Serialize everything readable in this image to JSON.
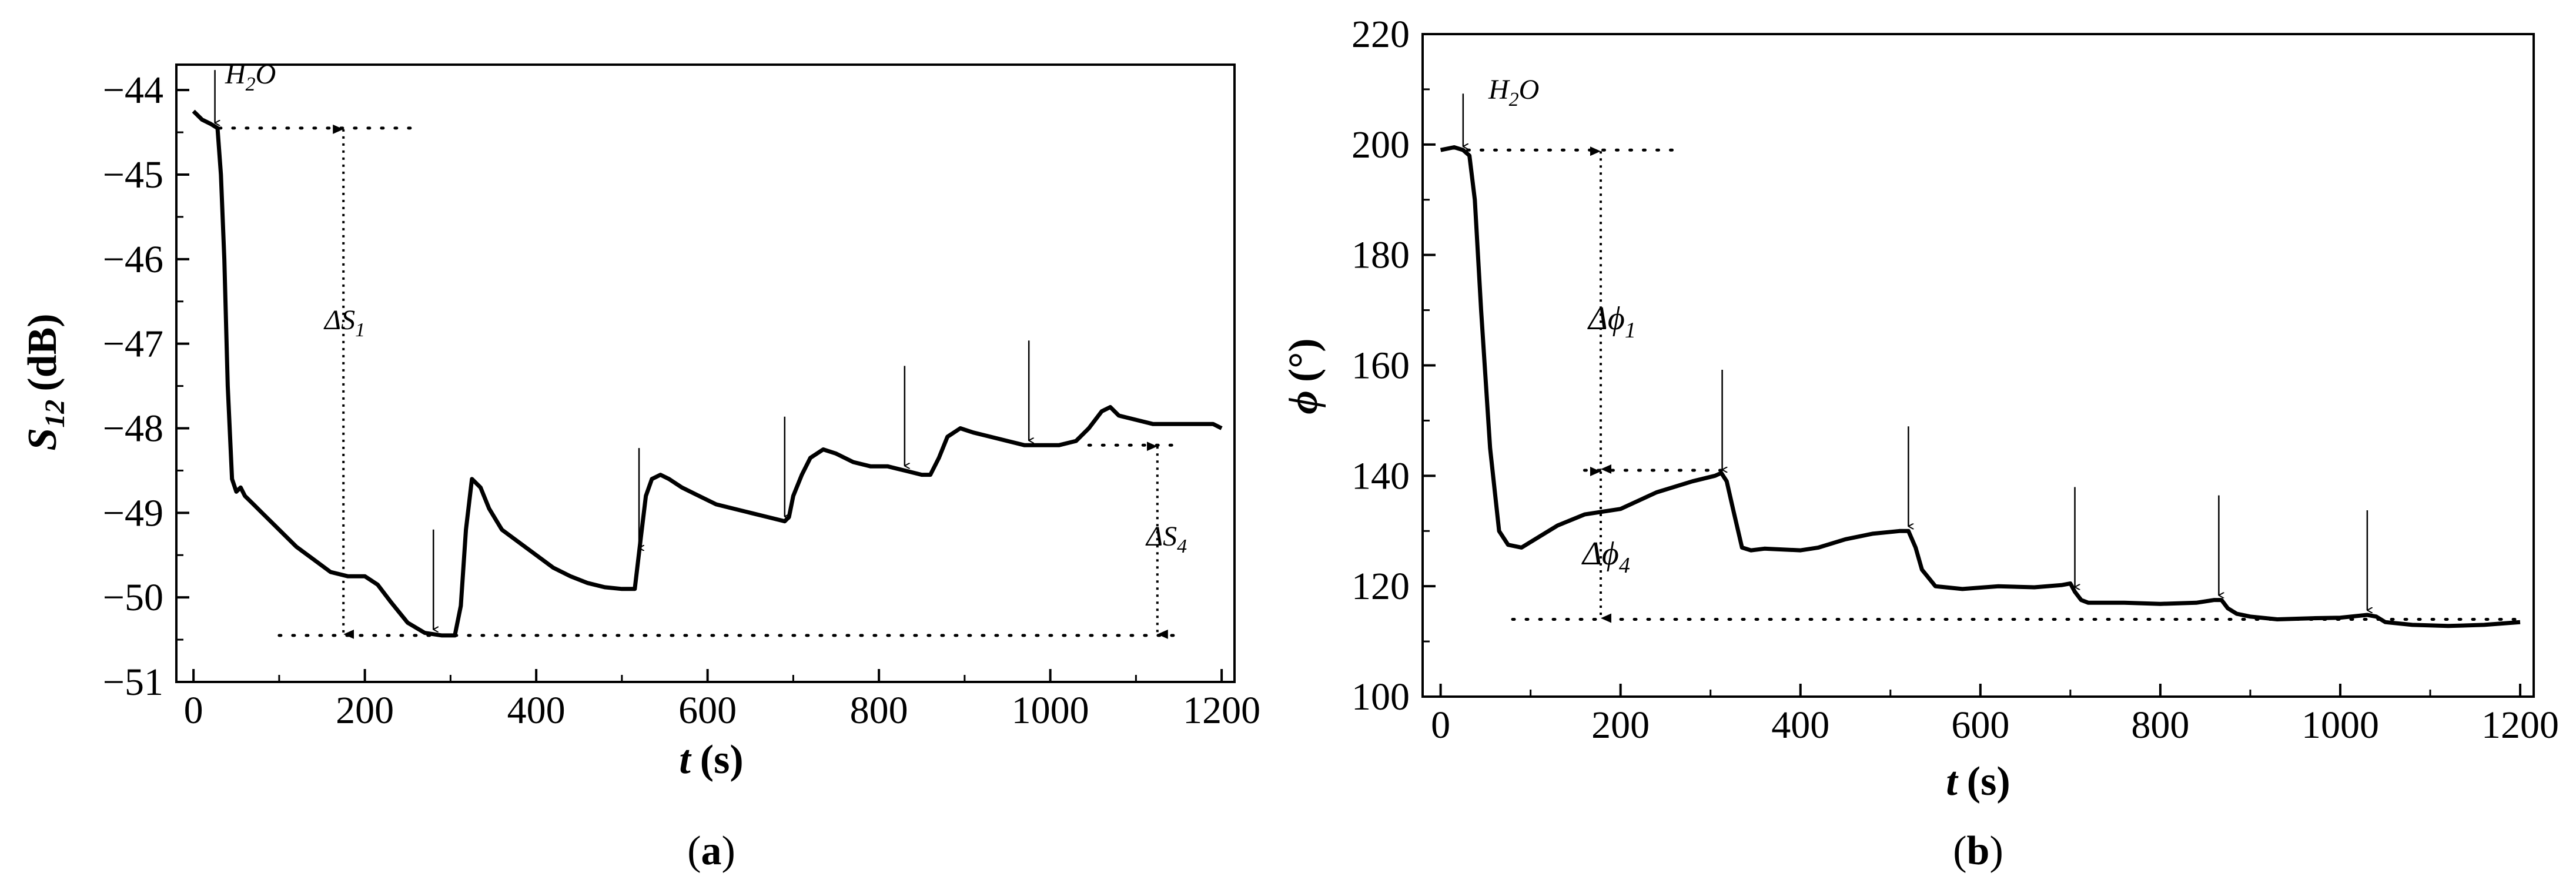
{
  "chart_data": [
    {
      "type": "line",
      "panel_label": "a",
      "xlabel": "t",
      "xlabel_unit": "(s)",
      "ylabel": "S",
      "ylabel_sub": "12",
      "ylabel_unit": "(dB)",
      "xlim": [
        -20,
        1215
      ],
      "ylim": [
        -51,
        -43.7
      ],
      "xticks": [
        0,
        200,
        400,
        600,
        800,
        1000,
        1200
      ],
      "yticks": [
        -44,
        -45,
        -46,
        -47,
        -48,
        -49,
        -50,
        -51
      ],
      "series": [
        {
          "name": "S12",
          "x": [
            0,
            10,
            20,
            28,
            32,
            36,
            40,
            45,
            50,
            55,
            60,
            70,
            80,
            100,
            120,
            140,
            160,
            180,
            200,
            215,
            230,
            250,
            270,
            290,
            305,
            312,
            318,
            325,
            335,
            345,
            360,
            380,
            400,
            420,
            440,
            460,
            480,
            500,
            515,
            522,
            528,
            535,
            545,
            555,
            570,
            590,
            610,
            630,
            650,
            670,
            690,
            695,
            700,
            710,
            720,
            735,
            750,
            770,
            790,
            810,
            830,
            850,
            860,
            870,
            880,
            895,
            910,
            930,
            950,
            970,
            990,
            1010,
            1030,
            1045,
            1060,
            1070,
            1080,
            1100,
            1120,
            1140,
            1160,
            1180,
            1190,
            1200
          ],
          "y": [
            -44.25,
            -44.35,
            -44.4,
            -44.45,
            -45.0,
            -46.0,
            -47.5,
            -48.6,
            -48.75,
            -48.7,
            -48.8,
            -48.9,
            -49.0,
            -49.2,
            -49.4,
            -49.55,
            -49.7,
            -49.75,
            -49.75,
            -49.85,
            -50.05,
            -50.3,
            -50.42,
            -50.45,
            -50.45,
            -50.1,
            -49.2,
            -48.6,
            -48.7,
            -48.95,
            -49.2,
            -49.35,
            -49.5,
            -49.65,
            -49.75,
            -49.83,
            -49.88,
            -49.9,
            -49.9,
            -49.3,
            -48.8,
            -48.6,
            -48.55,
            -48.6,
            -48.7,
            -48.8,
            -48.9,
            -48.95,
            -49.0,
            -49.05,
            -49.1,
            -49.05,
            -48.8,
            -48.55,
            -48.35,
            -48.25,
            -48.3,
            -48.4,
            -48.45,
            -48.45,
            -48.5,
            -48.55,
            -48.55,
            -48.35,
            -48.1,
            -48.0,
            -48.05,
            -48.1,
            -48.15,
            -48.2,
            -48.2,
            -48.2,
            -48.15,
            -48.0,
            -47.8,
            -47.75,
            -47.85,
            -47.9,
            -47.95,
            -47.95,
            -47.95,
            -47.95,
            -47.95,
            -48.0
          ]
        }
      ],
      "annotations": {
        "h2o_label": "H",
        "h2o_sub": "2",
        "h2o_tail": "O",
        "delta_s1_label": "ΔS",
        "delta_s1_sub": "1",
        "delta_s4_label": "ΔS",
        "delta_s4_sub": "4",
        "injection_times": [
          25,
          280,
          520,
          690,
          830,
          975
        ],
        "ref_levels": [
          -44.45,
          -50.45,
          -48.2
        ]
      }
    },
    {
      "type": "line",
      "panel_label": "b",
      "xlabel": "t",
      "xlabel_unit": "(s)",
      "ylabel": "ϕ",
      "ylabel_unit": "(°)",
      "xlim": [
        -20,
        1215
      ],
      "ylim": [
        100,
        220
      ],
      "xticks": [
        0,
        200,
        400,
        600,
        800,
        1000,
        1200
      ],
      "yticks": [
        100,
        120,
        140,
        160,
        180,
        200,
        220
      ],
      "series": [
        {
          "name": "phase",
          "x": [
            0,
            15,
            25,
            32,
            38,
            45,
            55,
            65,
            75,
            90,
            110,
            130,
            160,
            200,
            240,
            280,
            305,
            312,
            318,
            325,
            335,
            345,
            360,
            400,
            420,
            450,
            480,
            510,
            520,
            528,
            535,
            550,
            580,
            620,
            660,
            690,
            700,
            705,
            712,
            720,
            735,
            760,
            800,
            840,
            860,
            868,
            875,
            885,
            900,
            930,
            970,
            1000,
            1030,
            1040,
            1050,
            1080,
            1120,
            1160,
            1200
          ],
          "y": [
            199,
            199.5,
            199,
            198,
            190,
            170,
            145,
            130,
            127.5,
            127,
            129,
            131,
            133,
            134,
            137,
            139,
            140,
            140.5,
            139,
            134,
            127,
            126.5,
            126.8,
            126.5,
            127,
            128.5,
            129.5,
            130,
            130,
            127,
            123,
            120,
            119.5,
            120,
            119.8,
            120.2,
            120.5,
            119,
            117.5,
            117,
            117,
            117,
            116.8,
            117,
            117.5,
            117.5,
            116,
            115,
            114.5,
            114,
            114.2,
            114.3,
            114.8,
            114.5,
            113.5,
            113,
            112.8,
            113,
            113.5
          ]
        }
      ],
      "annotations": {
        "h2o_label": "H",
        "h2o_sub": "2",
        "h2o_tail": "O",
        "delta_phi1_label": "Δϕ",
        "delta_phi1_sub": "1",
        "delta_phi4_label": "Δϕ",
        "delta_phi4_sub": "4",
        "injection_times": [
          25,
          313,
          520,
          705,
          865,
          1030
        ],
        "ref_levels": [
          199,
          141,
          114
        ]
      }
    }
  ]
}
